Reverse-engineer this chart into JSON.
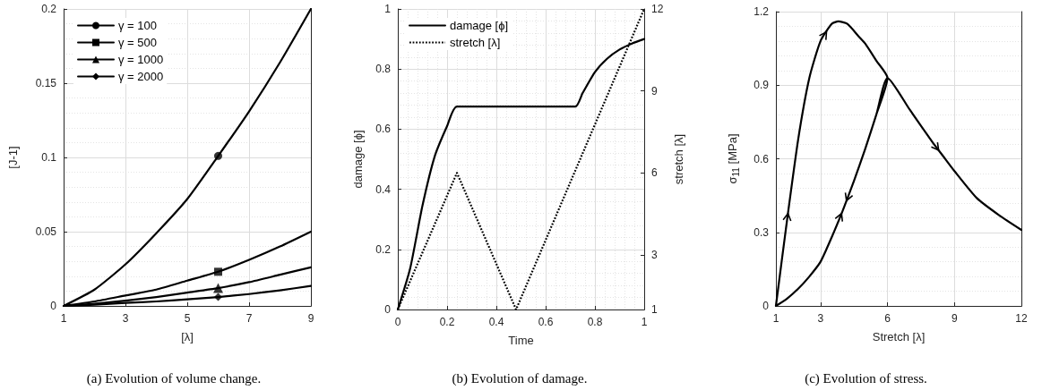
{
  "chart_data": [
    {
      "type": "line",
      "xlabel": "[λ]",
      "ylabel": "[J-1]",
      "xlim": [
        1,
        9
      ],
      "xticks": [
        1,
        3,
        5,
        7,
        9
      ],
      "ylim": [
        0,
        0.2
      ],
      "yticks": [
        0,
        0.05,
        0.1,
        0.15,
        0.2
      ],
      "grid": true,
      "legend": "top left",
      "annotations": [
        "(a) Evolution of volume change."
      ],
      "series": [
        {
          "name": "γ = 100",
          "color": "#000000",
          "x": [
            1,
            2,
            3,
            4,
            5,
            6,
            7,
            8,
            9
          ],
          "values": [
            0,
            0.011,
            0.028,
            0.049,
            0.072,
            0.101,
            0.131,
            0.164,
            0.2
          ]
        },
        {
          "name": "γ = 500",
          "color": "#000000",
          "x": [
            1,
            2,
            3,
            4,
            5,
            6,
            7,
            8,
            9
          ],
          "values": [
            0,
            0.003,
            0.007,
            0.011,
            0.017,
            0.023,
            0.031,
            0.04,
            0.05
          ]
        },
        {
          "name": "γ = 1000",
          "color": "#000000",
          "x": [
            1,
            2,
            3,
            4,
            5,
            6,
            7,
            8,
            9
          ],
          "values": [
            0,
            0.0015,
            0.0035,
            0.006,
            0.009,
            0.012,
            0.016,
            0.021,
            0.026
          ]
        },
        {
          "name": "γ = 2000",
          "color": "#000000",
          "x": [
            1,
            2,
            3,
            4,
            5,
            6,
            7,
            8,
            9
          ],
          "values": [
            0,
            0.0008,
            0.002,
            0.003,
            0.0045,
            0.006,
            0.008,
            0.0105,
            0.0135
          ]
        },
        {
          "type": "scatter",
          "color": "#000000",
          "marker": "circle",
          "x": [
            6
          ],
          "values": [
            0.101
          ]
        },
        {
          "type": "scatter",
          "color": "#000000",
          "marker": "square",
          "x": [
            6
          ],
          "values": [
            0.023
          ]
        },
        {
          "type": "scatter",
          "color": "#000000",
          "marker": "triangle",
          "x": [
            6
          ],
          "values": [
            0.012
          ]
        },
        {
          "type": "scatter",
          "color": "#000000",
          "marker": "diamond",
          "x": [
            6
          ],
          "values": [
            0.006
          ]
        }
      ]
    },
    {
      "type": "line",
      "xlabel": "Time",
      "ylabel": "damage [ϕ]",
      "y2label": "stretch [λ]",
      "xlim": [
        0,
        1
      ],
      "xticks": [
        0,
        0.2,
        0.4,
        0.6,
        0.8,
        1
      ],
      "ylim": [
        0,
        1
      ],
      "yticks": [
        0,
        0.2,
        0.4,
        0.6,
        0.8,
        1
      ],
      "y2lim": [
        1,
        12
      ],
      "y2ticks": [
        1,
        3,
        6,
        9,
        12
      ],
      "grid": true,
      "legend": "top left",
      "annotations": [
        "(b) Evolution of damage."
      ],
      "series": [
        {
          "name": "damage [ϕ]",
          "color": "#000000",
          "line_style": "solid",
          "x": [
            0,
            0.05,
            0.1,
            0.15,
            0.2,
            0.24,
            0.72,
            0.75,
            0.8,
            0.85,
            0.9,
            0.95,
            1
          ],
          "values": [
            0,
            0.136,
            0.345,
            0.51,
            0.61,
            0.675,
            0.675,
            0.72,
            0.79,
            0.835,
            0.865,
            0.885,
            0.9
          ]
        },
        {
          "name": "stretch [λ]",
          "color": "#000000",
          "line_style": "dotted",
          "axis": "y2",
          "x": [
            0,
            0.24,
            0.48,
            1
          ],
          "values": [
            1,
            6,
            1,
            12
          ]
        }
      ]
    },
    {
      "type": "line",
      "xlabel": "Stretch [λ]",
      "ylabel": "σ$_{11}$ [MPa]",
      "xlim": [
        1,
        12
      ],
      "xticks": [
        1,
        3,
        6,
        9,
        12
      ],
      "ylim": [
        0,
        1.2
      ],
      "yticks": [
        0,
        0.3,
        0.6,
        0.9,
        1.2
      ],
      "grid": true,
      "annotations": [
        "(c) Evolution of stress."
      ],
      "series": [
        {
          "color": "#000000",
          "x": [
            1,
            1.5,
            2,
            2.5,
            3,
            3.5,
            3.8,
            4.2,
            4.7,
            5,
            5.5,
            6,
            5.5,
            5,
            4.5,
            4,
            3.5,
            3,
            2.5,
            2,
            1.5,
            1,
            1.5,
            2,
            2.5,
            3,
            3.5,
            4,
            4.5,
            5,
            5.5,
            6,
            7,
            8,
            8.5,
            9,
            10,
            11,
            12
          ],
          "values": [
            0,
            0.35,
            0.68,
            0.93,
            1.08,
            1.15,
            1.16,
            1.15,
            1.1,
            1.07,
            1.0,
            0.93,
            0.78,
            0.64,
            0.51,
            0.39,
            0.28,
            0.18,
            0.12,
            0.07,
            0.03,
            0,
            0.03,
            0.07,
            0.12,
            0.18,
            0.28,
            0.39,
            0.51,
            0.64,
            0.78,
            0.93,
            0.8,
            0.67,
            0.61,
            0.55,
            0.44,
            0.37,
            0.31
          ]
        }
      ]
    }
  ]
}
